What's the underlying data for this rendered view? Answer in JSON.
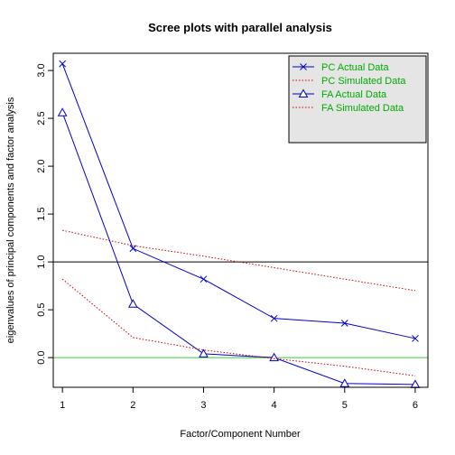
{
  "chart_data": {
    "type": "line",
    "title": "Scree plots with parallel analysis",
    "xlabel": "Factor/Component Number",
    "ylabel": "eigenvalues of principal components and factor analysis",
    "xlim": [
      0.87,
      6.18
    ],
    "ylim": [
      -0.31,
      3.18
    ],
    "x_ticks": [
      "1",
      "2",
      "3",
      "4",
      "5",
      "6"
    ],
    "y_ticks": [
      "0.0",
      "0.5",
      "1.0",
      "1.5",
      "2.0",
      "2.5",
      "3.0"
    ],
    "x": [
      1,
      2,
      3,
      4,
      5,
      6
    ],
    "series": [
      {
        "name": "PC  Actual Data",
        "values": [
          3.07,
          1.14,
          0.82,
          0.41,
          0.36,
          0.2
        ],
        "color": "#0000cc",
        "line": "solid",
        "marker": "x"
      },
      {
        "name": "PC  Simulated Data",
        "values": [
          1.33,
          1.17,
          1.06,
          0.94,
          0.82,
          0.7
        ],
        "color": "#cc0000",
        "line": "dotted",
        "marker": "none"
      },
      {
        "name": "FA  Actual Data",
        "values": [
          2.56,
          0.56,
          0.04,
          0.0,
          -0.27,
          -0.28
        ],
        "color": "#0000cc",
        "line": "solid",
        "marker": "triangle"
      },
      {
        "name": "FA  Simulated Data",
        "values": [
          0.82,
          0.21,
          0.08,
          -0.01,
          -0.09,
          -0.19
        ],
        "color": "#cc0000",
        "line": "dotted",
        "marker": "none"
      }
    ],
    "reference_lines": [
      {
        "y": 1.0,
        "color": "#000000"
      },
      {
        "y": 0.0,
        "color": "#33cc33"
      }
    ],
    "legend": {
      "position": "top-right",
      "background": "#e5e5e5",
      "text_color": "#00aa00"
    },
    "grid": false
  }
}
